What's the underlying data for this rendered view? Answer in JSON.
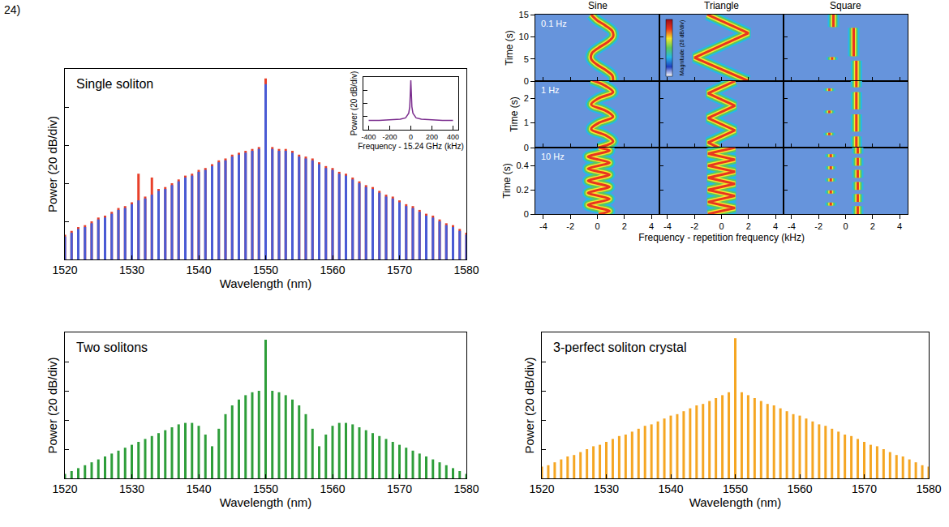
{
  "panel_label": "24)",
  "chart_data": [
    {
      "type": "comb_spectrum",
      "title": "Single soliton",
      "x_label": "Wavelength (nm)",
      "y_label": "Power (20 dB/div)",
      "xlim": [
        1520,
        1580
      ],
      "xticks": [
        1520,
        1530,
        1540,
        1550,
        1560,
        1570,
        1580
      ],
      "ylim": [
        -100,
        0
      ],
      "yticks": [
        -80,
        -60,
        -40,
        -20
      ],
      "grid": false,
      "tick_labels": "x",
      "x": [
        1520,
        1521,
        1522,
        1523,
        1524,
        1525,
        1526,
        1527,
        1528,
        1529,
        1530,
        1531,
        1532,
        1533,
        1534,
        1535,
        1536,
        1537,
        1538,
        1539,
        1540,
        1541,
        1542,
        1543,
        1544,
        1545,
        1546,
        1547,
        1548,
        1549,
        1550,
        1551,
        1552,
        1553,
        1554,
        1555,
        1556,
        1557,
        1558,
        1559,
        1560,
        1561,
        1562,
        1563,
        1564,
        1565,
        1566,
        1567,
        1568,
        1569,
        1570,
        1571,
        1572,
        1573,
        1574,
        1575,
        1576,
        1577,
        1578,
        1579,
        1580
      ],
      "series": [
        {
          "color": "#e8402a",
          "values": [
            -87,
            -85,
            -83,
            -82,
            -80,
            -78,
            -77,
            -75,
            -73,
            -72,
            -70,
            -55,
            -67,
            -57,
            -63,
            -62,
            -60,
            -58,
            -56,
            -55,
            -53,
            -52,
            -50,
            -48,
            -47,
            -45,
            -44,
            -43,
            -42,
            -41,
            -5,
            -41,
            -42,
            -42,
            -43,
            -45,
            -46,
            -47,
            -49,
            -51,
            -52,
            -54,
            -55,
            -57,
            -59,
            -61,
            -62,
            -64,
            -66,
            -67,
            -69,
            -71,
            -72,
            -74,
            -76,
            -77,
            -79,
            -81,
            -82,
            -84,
            -86
          ]
        },
        {
          "color": "#4a5bd4",
          "values": [
            -88,
            -86,
            -84,
            -83,
            -81,
            -79,
            -78,
            -76,
            -74,
            -73,
            -71,
            -69,
            -68,
            -66,
            -64,
            -63,
            -61,
            -59,
            -57,
            -56,
            -54,
            -53,
            -51,
            -49,
            -48,
            -46,
            -45,
            -44,
            -43,
            -42,
            -8,
            -42,
            -43,
            -43,
            -44,
            -46,
            -47,
            -48,
            -50,
            -52,
            -53,
            -55,
            -56,
            -58,
            -60,
            -62,
            -63,
            -65,
            -67,
            -68,
            -70,
            -72,
            -73,
            -75,
            -77,
            -78,
            -80,
            -82,
            -83,
            -85,
            -87
          ]
        }
      ]
    },
    {
      "type": "line",
      "x_label": "Frequency - 15.24 GHz (kHz)",
      "y_label": "Power (20 dB/div)",
      "xlim": [
        -450,
        450
      ],
      "xticks": [
        -400,
        -200,
        0,
        200,
        400
      ],
      "ylim": [
        -80,
        0
      ],
      "yticks": [
        -60,
        -40,
        -20
      ],
      "grid": false,
      "tick_labels": "x",
      "color": "#7b2d8e",
      "x": [
        -400,
        -300,
        -200,
        -100,
        -50,
        -20,
        -10,
        0,
        10,
        20,
        50,
        100,
        200,
        300,
        400
      ],
      "values": [
        -66,
        -66,
        -65,
        -64,
        -62,
        -55,
        -45,
        -5,
        -45,
        -55,
        -62,
        -64,
        -65,
        -66,
        -66
      ]
    },
    {
      "type": "trajectory_grid",
      "x_label": "Frequency - repetition frequency (kHz)",
      "y_label": "Time (s)",
      "xlim": [
        -4.6,
        4.6
      ],
      "xticks": [
        -4,
        -2,
        0,
        2,
        4
      ],
      "grid": false,
      "tick_labels": true,
      "colorbar": {
        "title": "Magnitude (20 dB/div)",
        "colors": [
          "#ffffff",
          "#1f3fbf",
          "#26b8e8",
          "#5cc85c",
          "#f5e82e",
          "#e8361f",
          "#9e0c18"
        ]
      },
      "columns": [
        {
          "title": "Sine",
          "line_style": "spline"
        },
        {
          "title": "Triangle",
          "line_style": "linear"
        },
        {
          "title": "Square",
          "line_style": "linear"
        }
      ],
      "rows": [
        {
          "label": "0.1 Hz",
          "ylim": [
            0,
            15
          ],
          "yticks": [
            0,
            5,
            10,
            15
          ],
          "panels": [
            {
              "time": [
                0,
                1.25,
                2.5,
                3.75,
                5,
                6.25,
                7.5,
                8.75,
                10,
                11.25,
                12.5,
                13.75,
                15
              ],
              "frequency": [
                1.16,
                1.11,
                0.61,
                -0.04,
                -0.46,
                -0.41,
                0.09,
                0.74,
                1.16,
                1.11,
                0.61,
                -0.04,
                -0.46
              ]
            },
            {
              "time": [
                0,
                5.3,
                10.8,
                15
              ],
              "frequency": [
                2,
                -2,
                2,
                -1.05
              ]
            },
            {
              "time": [
                0,
                4.6,
                null,
                4.8,
                5.4,
                null,
                5.6,
                12,
                null,
                12.2,
                15
              ],
              "frequency": [
                0.8,
                0.8,
                null,
                -1,
                -1,
                null,
                0.6,
                0.6,
                null,
                -0.9,
                -0.9
              ]
            }
          ]
        },
        {
          "label": "1 Hz",
          "ylim": [
            0,
            2.7
          ],
          "yticks": [
            0,
            1,
            2
          ],
          "panels": [
            {
              "time": [
                0,
                0.25,
                0.5,
                0.75,
                1,
                1.25,
                1.5,
                1.75,
                2,
                2.25,
                2.5,
                2.75
              ],
              "frequency": [
                0.09,
                1.16,
                0.61,
                -0.46,
                0.09,
                1.16,
                0.61,
                -0.46,
                0.09,
                1.16,
                0.61,
                -0.46
              ]
            },
            {
              "time": [
                0,
                0.2,
                0.7,
                1.2,
                1.7,
                2.2,
                2.7
              ],
              "frequency": [
                -0.2,
                -1,
                1,
                -1,
                1,
                -1,
                1
              ]
            },
            {
              "time": [
                0,
                0.45,
                null,
                0.5,
                0.6,
                null,
                0.65,
                1.35,
                null,
                1.4,
                1.5,
                null,
                1.55,
                2.25,
                null,
                2.3,
                2.4,
                null,
                2.45,
                2.7
              ],
              "frequency": [
                0.8,
                0.8,
                null,
                -1.2,
                -1.2,
                null,
                0.8,
                0.8,
                null,
                -1.2,
                -1.2,
                null,
                0.8,
                0.8,
                null,
                -1.2,
                -1.2,
                null,
                0.8,
                0.8
              ]
            }
          ]
        },
        {
          "label": "10 Hz",
          "ylim": [
            0,
            0.55
          ],
          "yticks": [
            0,
            0.2,
            0.4
          ],
          "panels": [
            {
              "time": [
                0,
                0.025,
                0.05,
                0.075,
                0.1,
                0.125,
                0.15,
                0.175,
                0.2,
                0.225,
                0.25,
                0.275,
                0.3,
                0.325,
                0.35,
                0.375,
                0.4,
                0.425,
                0.45,
                0.475,
                0.5,
                0.525,
                0.55
              ],
              "frequency": [
                0.1,
                0.9,
                0.1,
                -0.7,
                0.1,
                0.9,
                0.1,
                -0.7,
                0.1,
                0.9,
                0.1,
                -0.7,
                0.1,
                0.9,
                0.1,
                -0.7,
                0.1,
                0.9,
                0.1,
                -0.7,
                0.1,
                0.9,
                0.1
              ]
            },
            {
              "time": [
                0,
                0.05,
                0.1,
                0.15,
                0.2,
                0.25,
                0.3,
                0.35,
                0.4,
                0.45,
                0.5,
                0.55
              ],
              "frequency": [
                -1,
                1,
                -1,
                1,
                -1,
                1,
                -1,
                1,
                -1,
                1,
                -1,
                1
              ]
            },
            {
              "time": [
                0,
                0.065,
                null,
                0.07,
                0.095,
                null,
                0.1,
                0.165,
                null,
                0.17,
                0.195,
                null,
                0.2,
                0.265,
                null,
                0.27,
                0.295,
                null,
                0.3,
                0.365,
                null,
                0.37,
                0.395,
                null,
                0.4,
                0.465,
                null,
                0.47,
                0.495,
                null,
                0.5,
                0.55
              ],
              "frequency": [
                0.9,
                0.9,
                null,
                -1.1,
                -1.1,
                null,
                0.9,
                0.9,
                null,
                -1.1,
                -1.1,
                null,
                0.9,
                0.9,
                null,
                -1.1,
                -1.1,
                null,
                0.9,
                0.9,
                null,
                -1.1,
                -1.1,
                null,
                0.9,
                0.9,
                null,
                -1.1,
                -1.1,
                null,
                0.9,
                0.9
              ]
            }
          ]
        }
      ]
    },
    {
      "type": "comb_spectrum",
      "title": "Two solitons",
      "x_label": "Wavelength (nm)",
      "y_label": "Power (20 dB/div)",
      "xlim": [
        1520,
        1580
      ],
      "xticks": [
        1520,
        1530,
        1540,
        1550,
        1560,
        1570,
        1580
      ],
      "ylim": [
        -100,
        0
      ],
      "yticks": [
        -80,
        -60,
        -40,
        -20
      ],
      "grid": false,
      "tick_labels": "x",
      "x": [
        1520,
        1521,
        1522,
        1523,
        1524,
        1525,
        1526,
        1527,
        1528,
        1529,
        1530,
        1531,
        1532,
        1533,
        1534,
        1535,
        1536,
        1537,
        1538,
        1539,
        1540,
        1541,
        1542,
        1543,
        1544,
        1545,
        1546,
        1547,
        1548,
        1549,
        1550,
        1551,
        1552,
        1553,
        1554,
        1555,
        1556,
        1557,
        1558,
        1559,
        1560,
        1561,
        1562,
        1563,
        1564,
        1565,
        1566,
        1567,
        1568,
        1569,
        1570,
        1571,
        1572,
        1573,
        1574,
        1575,
        1576,
        1577,
        1578,
        1579,
        1580
      ],
      "series": [
        {
          "color": "#2e9e3a",
          "values": [
            -97,
            -95,
            -93,
            -91,
            -89,
            -87,
            -85,
            -83,
            -81,
            -79,
            -77,
            -75,
            -73,
            -71,
            -69,
            -67,
            -65,
            -63,
            -62,
            -62,
            -64,
            -70,
            -78,
            -66,
            -56,
            -50,
            -46,
            -43,
            -41,
            -40,
            -5,
            -40,
            -41,
            -43,
            -46,
            -50,
            -56,
            -66,
            -78,
            -70,
            -64,
            -62,
            -62,
            -63,
            -65,
            -67,
            -69,
            -71,
            -73,
            -75,
            -77,
            -79,
            -81,
            -83,
            -85,
            -87,
            -89,
            -91,
            -93,
            -95,
            -97
          ]
        }
      ]
    },
    {
      "type": "comb_spectrum",
      "title": "3-perfect soliton crystal",
      "x_label": "Wavelength (nm)",
      "y_label": "Power (20 dB/div)",
      "xlim": [
        1520,
        1580
      ],
      "xticks": [
        1520,
        1530,
        1540,
        1550,
        1560,
        1570,
        1580
      ],
      "ylim": [
        -100,
        0
      ],
      "yticks": [
        -80,
        -60,
        -40,
        -20
      ],
      "grid": false,
      "tick_labels": "x",
      "x": [
        1520,
        1521,
        1522,
        1523,
        1524,
        1525,
        1526,
        1527,
        1528,
        1529,
        1530,
        1531,
        1532,
        1533,
        1534,
        1535,
        1536,
        1537,
        1538,
        1539,
        1540,
        1541,
        1542,
        1543,
        1544,
        1545,
        1546,
        1547,
        1548,
        1549,
        1550,
        1551,
        1552,
        1553,
        1554,
        1555,
        1556,
        1557,
        1558,
        1559,
        1560,
        1561,
        1562,
        1563,
        1564,
        1565,
        1566,
        1567,
        1568,
        1569,
        1570,
        1571,
        1572,
        1573,
        1574,
        1575,
        1576,
        1577,
        1578,
        1579,
        1580
      ],
      "series": [
        {
          "color": "#f5a623",
          "values": [
            -92,
            -91,
            -89,
            -87,
            -85,
            -84,
            -82,
            -80,
            -78,
            -77,
            -75,
            -73,
            -71,
            -70,
            -68,
            -66,
            -64,
            -63,
            -61,
            -59,
            -57,
            -56,
            -54,
            -52,
            -50,
            -49,
            -47,
            -45,
            -43,
            -41,
            -4,
            -41,
            -43,
            -45,
            -47,
            -49,
            -50,
            -52,
            -54,
            -56,
            -57,
            -59,
            -61,
            -63,
            -64,
            -66,
            -68,
            -70,
            -71,
            -73,
            -75,
            -77,
            -78,
            -80,
            -82,
            -84,
            -85,
            -87,
            -89,
            -91,
            -92
          ]
        }
      ]
    }
  ]
}
